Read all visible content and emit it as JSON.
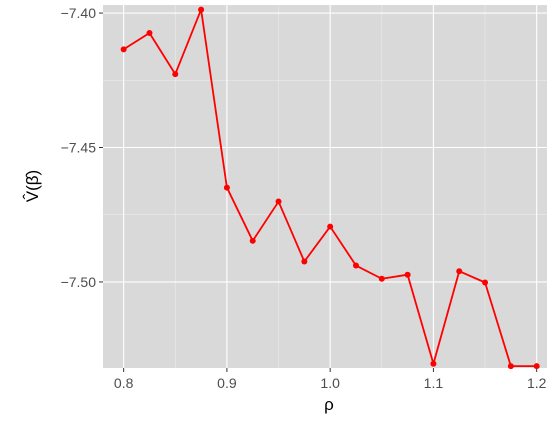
{
  "chart_data": {
    "type": "line",
    "title": "",
    "xlabel": "ρ",
    "ylabel": "V̂(β̂)",
    "xlim": [
      0.78,
      1.21
    ],
    "ylim": [
      -7.532,
      -7.397
    ],
    "x_ticks": [
      0.8,
      0.9,
      1.0,
      1.1,
      1.2
    ],
    "x_tick_labels": [
      "0.8",
      "0.9",
      "1.0",
      "1.1",
      "1.2"
    ],
    "y_ticks": [
      -7.4,
      -7.45,
      -7.5
    ],
    "y_tick_labels": [
      "−7.40",
      "−7.45",
      "−7.50"
    ],
    "grid": true,
    "legend": "none",
    "colors": {
      "panel": "#d9d9d9",
      "line": "#ff0000",
      "point": "#ff0000"
    },
    "series": [
      {
        "x": [
          0.8,
          0.825,
          0.85,
          0.875,
          0.9,
          0.925,
          0.95,
          0.975,
          1.0,
          1.025,
          1.05,
          1.075,
          1.1,
          1.125,
          1.15,
          1.175,
          1.2
        ],
        "values": [
          -7.4135,
          -7.4074,
          -7.4227,
          -7.3987,
          -7.4649,
          -7.4847,
          -7.4701,
          -7.4924,
          -7.4794,
          -7.4939,
          -7.4988,
          -7.4973,
          -7.5304,
          -7.496,
          -7.5002,
          -7.5313,
          -7.5313
        ]
      }
    ]
  }
}
